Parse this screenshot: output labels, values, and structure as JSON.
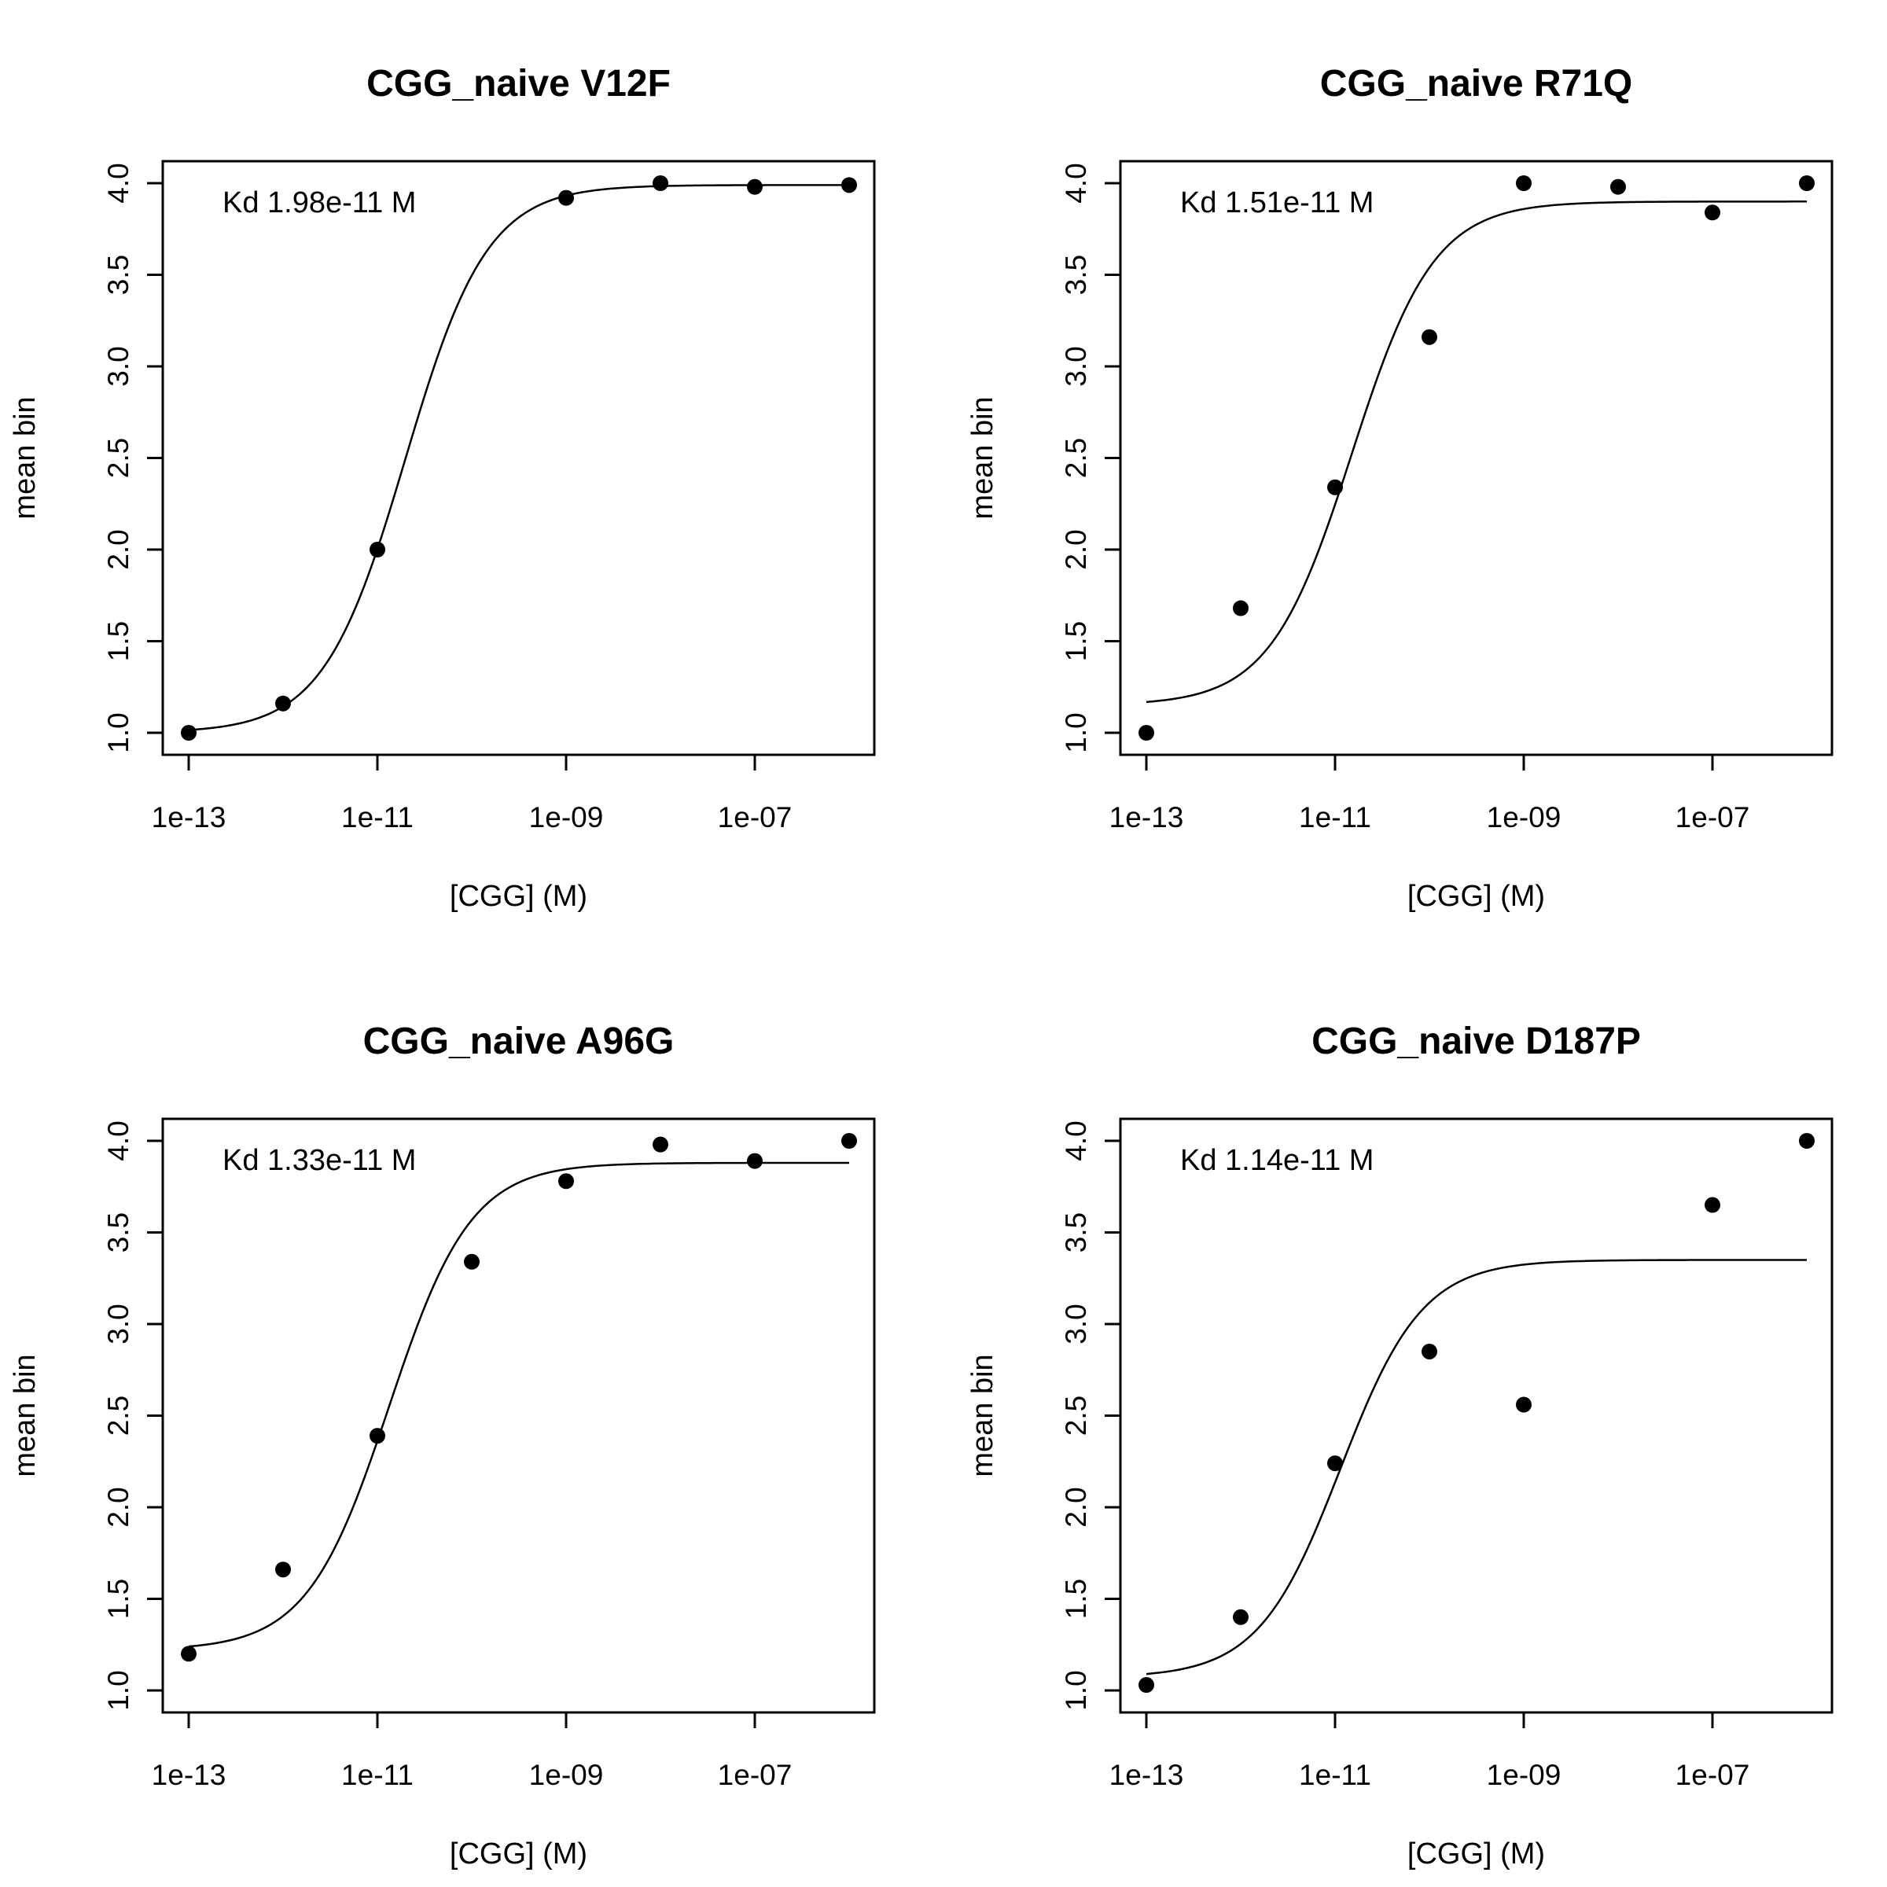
{
  "chart_data": [
    {
      "type": "scatter",
      "title": "CGG_naive V12F",
      "xlabel": "[CGG] (M)",
      "ylabel": "mean bin",
      "annotation": "Kd 1.98e-11 M",
      "x_scale": "log",
      "x_ticks": [
        "1e-13",
        "1e-11",
        "1e-09",
        "1e-07"
      ],
      "y_ticks": [
        "1.0",
        "1.5",
        "2.0",
        "2.5",
        "3.0",
        "3.5",
        "4.0"
      ],
      "xlim": [
        1e-13,
        1e-06
      ],
      "ylim": [
        1.0,
        4.0
      ],
      "grid": false,
      "legend": "none",
      "points": {
        "x": [
          1e-13,
          1e-12,
          1e-11,
          1e-09,
          1e-08,
          1e-07,
          1e-06
        ],
        "y": [
          1.0,
          1.16,
          2.0,
          3.92,
          4.0,
          3.98,
          3.99
        ]
      },
      "fit": {
        "kd": 1.98e-11,
        "bottom": 1.0,
        "top": 3.99
      }
    },
    {
      "type": "scatter",
      "title": "CGG_naive R71Q",
      "xlabel": "[CGG] (M)",
      "ylabel": "mean bin",
      "annotation": "Kd 1.51e-11 M",
      "x_scale": "log",
      "x_ticks": [
        "1e-13",
        "1e-11",
        "1e-09",
        "1e-07"
      ],
      "y_ticks": [
        "1.0",
        "1.5",
        "2.0",
        "2.5",
        "3.0",
        "3.5",
        "4.0"
      ],
      "xlim": [
        1e-13,
        1e-06
      ],
      "ylim": [
        1.0,
        4.0
      ],
      "grid": false,
      "legend": "none",
      "points": {
        "x": [
          1e-13,
          1e-12,
          1e-11,
          1e-10,
          1e-09,
          1e-08,
          1e-07,
          1e-06
        ],
        "y": [
          1.0,
          1.68,
          2.34,
          3.16,
          4.0,
          3.98,
          3.84,
          4.0
        ]
      },
      "fit": {
        "kd": 1.51e-11,
        "bottom": 1.15,
        "top": 3.9
      }
    },
    {
      "type": "scatter",
      "title": "CGG_naive A96G",
      "xlabel": "[CGG] (M)",
      "ylabel": "mean bin",
      "annotation": "Kd 1.33e-11 M",
      "x_scale": "log",
      "x_ticks": [
        "1e-13",
        "1e-11",
        "1e-09",
        "1e-07"
      ],
      "y_ticks": [
        "1.0",
        "1.5",
        "2.0",
        "2.5",
        "3.0",
        "3.5",
        "4.0"
      ],
      "xlim": [
        1e-13,
        1e-06
      ],
      "ylim": [
        1.0,
        4.0
      ],
      "grid": false,
      "legend": "none",
      "points": {
        "x": [
          1e-13,
          1e-12,
          1e-11,
          1e-10,
          1e-09,
          1e-08,
          1e-07,
          1e-06
        ],
        "y": [
          1.2,
          1.66,
          2.39,
          3.34,
          3.78,
          3.98,
          3.89,
          4.0
        ]
      },
      "fit": {
        "kd": 1.33e-11,
        "bottom": 1.22,
        "top": 3.88
      }
    },
    {
      "type": "scatter",
      "title": "CGG_naive D187P",
      "xlabel": "[CGG] (M)",
      "ylabel": "mean bin",
      "annotation": "Kd 1.14e-11 M",
      "x_scale": "log",
      "x_ticks": [
        "1e-13",
        "1e-11",
        "1e-09",
        "1e-07"
      ],
      "y_ticks": [
        "1.0",
        "1.5",
        "2.0",
        "2.5",
        "3.0",
        "3.5",
        "4.0"
      ],
      "xlim": [
        1e-13,
        1e-06
      ],
      "ylim": [
        1.0,
        4.0
      ],
      "grid": false,
      "legend": "none",
      "points": {
        "x": [
          1e-13,
          1e-12,
          1e-11,
          1e-10,
          1e-09,
          1e-07,
          1e-06
        ],
        "y": [
          1.03,
          1.4,
          2.24,
          2.85,
          2.56,
          3.65,
          4.0
        ]
      },
      "fit": {
        "kd": 1.14e-11,
        "bottom": 1.07,
        "top": 3.35
      }
    }
  ]
}
